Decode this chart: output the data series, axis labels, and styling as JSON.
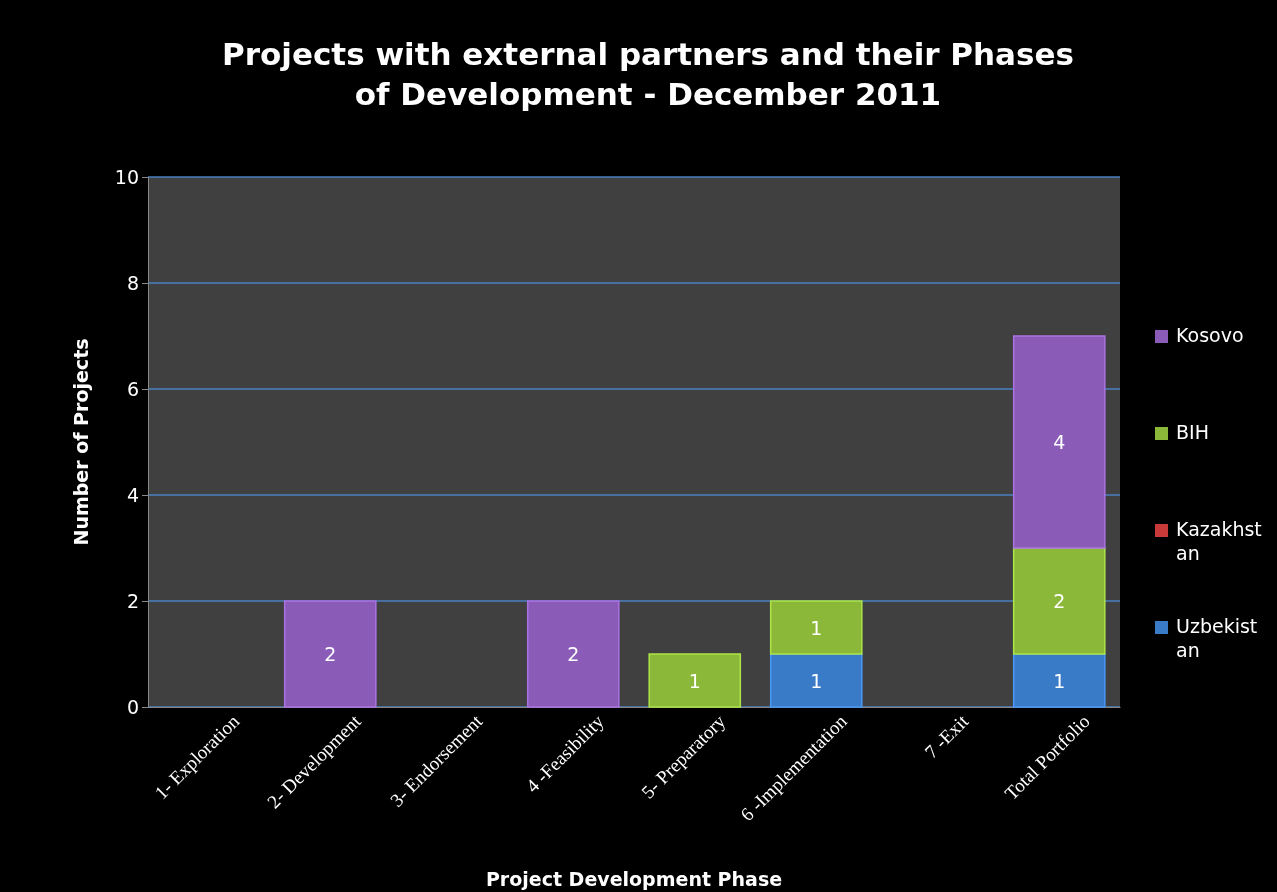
{
  "chart_data": {
    "type": "bar",
    "title": "Projects with external partners and their Phases of Development - December 2011",
    "xlabel": "Project Development Phase",
    "ylabel": "Number of Projects",
    "categories": [
      "1- Exploration",
      "2- Development",
      "3- Endorsement",
      "4 -Feasibility",
      "5- Preparatory",
      "6 -Implementation",
      "7 -Exit",
      "Total Portfolio"
    ],
    "stacked": true,
    "data_labels": true,
    "grid": "y",
    "legend": "right",
    "ylim": [
      0,
      10
    ],
    "yticks": [
      0,
      2,
      4,
      6,
      8,
      10
    ],
    "series": [
      {
        "name": "Uzbekistan",
        "color": "#3a7bc8",
        "values": [
          null,
          null,
          null,
          null,
          null,
          1,
          null,
          1
        ]
      },
      {
        "name": "Kazakhstan",
        "color": "#c83a3a",
        "values": [
          null,
          null,
          null,
          null,
          null,
          null,
          null,
          null
        ]
      },
      {
        "name": "BIH",
        "color": "#8cb83a",
        "values": [
          null,
          null,
          null,
          null,
          1,
          1,
          null,
          2
        ]
      },
      {
        "name": "Kosovo",
        "color": "#8a5cb8",
        "values": [
          null,
          2,
          null,
          2,
          null,
          null,
          null,
          4
        ]
      }
    ]
  }
}
